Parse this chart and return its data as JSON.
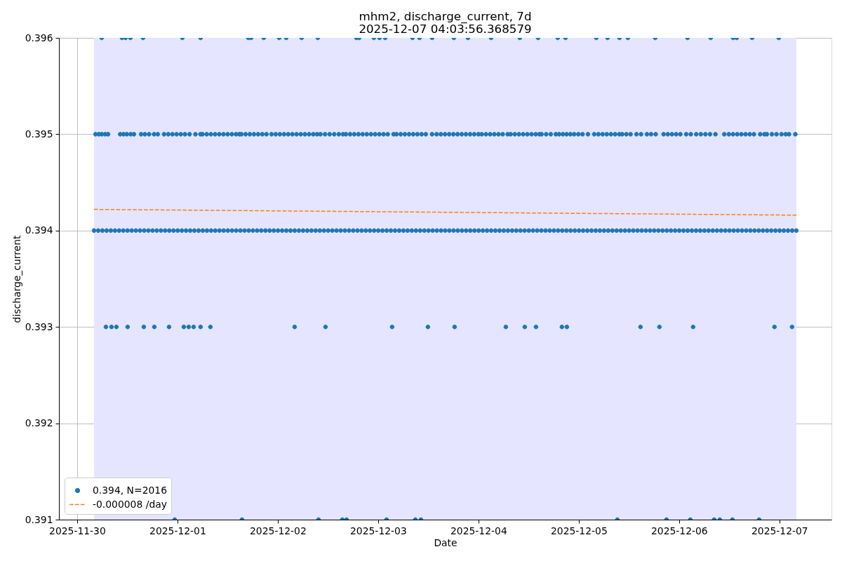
{
  "chart_data": {
    "type": "scatter",
    "title": "mhm2, discharge_current, 7d",
    "subtitle": "2025-12-07 04:03:56.368579",
    "xlabel": "Date",
    "ylabel": "discharge_current",
    "xlim": [
      "2025-11-29T19:39",
      "2025-12-07T12:27"
    ],
    "xticks": [
      "2025-11-30",
      "2025-12-01",
      "2025-12-02",
      "2025-12-03",
      "2025-12-04",
      "2025-12-05",
      "2025-12-06",
      "2025-12-07"
    ],
    "ylim": [
      0.391,
      0.396
    ],
    "yticks": [
      0.391,
      0.392,
      0.393,
      0.394,
      0.395,
      0.396
    ],
    "grid": true,
    "legend": "bottom left",
    "bands": [
      {
        "axis": "x",
        "from": "2025-11-30T04:03",
        "to": "2025-12-07T04:03",
        "color": "#e5e5ff"
      }
    ],
    "series": [
      {
        "name": "0.394, N=2016",
        "color": "#1f77b4",
        "marker": "circle",
        "x": [
          "2025-11-30T04:03",
          "2025-11-30T05:03",
          "2025-11-30T06:03",
          "2025-11-30T07:03",
          "2025-11-30T08:03",
          "2025-11-30T09:03",
          "2025-11-30T10:03",
          "2025-11-30T11:03",
          "2025-11-30T12:03",
          "2025-11-30T13:03",
          "2025-11-30T14:03",
          "2025-11-30T15:03",
          "2025-11-30T16:03",
          "2025-11-30T17:03",
          "2025-11-30T18:03",
          "2025-11-30T19:03",
          "2025-11-30T20:03",
          "2025-11-30T21:03",
          "2025-11-30T22:03",
          "2025-11-30T23:03",
          "2025-12-01T00:03",
          "2025-12-01T01:03",
          "2025-12-01T02:03",
          "2025-12-01T03:03",
          "2025-12-01T04:03",
          "2025-12-01T05:03",
          "2025-12-01T06:03",
          "2025-12-01T07:03",
          "2025-12-01T08:03",
          "2025-12-01T09:03",
          "2025-12-01T10:03",
          "2025-12-01T11:03",
          "2025-12-01T12:03",
          "2025-12-01T13:03",
          "2025-12-01T14:03",
          "2025-12-01T15:03",
          "2025-12-01T16:03",
          "2025-12-01T17:03",
          "2025-12-01T18:03",
          "2025-12-01T19:03",
          "2025-12-01T20:03",
          "2025-12-01T21:03",
          "2025-12-01T22:03",
          "2025-12-01T23:03",
          "2025-12-02T00:03",
          "2025-12-02T01:03",
          "2025-12-02T02:03",
          "2025-12-02T03:03",
          "2025-12-02T04:03",
          "2025-12-02T05:03",
          "2025-12-02T06:03",
          "2025-12-02T07:03",
          "2025-12-02T08:03",
          "2025-12-02T09:03",
          "2025-12-02T10:03",
          "2025-12-02T11:03",
          "2025-12-02T12:03",
          "2025-12-02T13:03",
          "2025-12-02T14:03",
          "2025-12-02T15:03",
          "2025-12-02T16:03",
          "2025-12-02T17:03",
          "2025-12-02T18:03",
          "2025-12-02T19:03",
          "2025-12-02T20:03",
          "2025-12-02T21:03",
          "2025-12-02T22:03",
          "2025-12-02T23:03",
          "2025-12-03T00:03",
          "2025-12-03T01:03",
          "2025-12-03T02:03",
          "2025-12-03T03:03",
          "2025-12-03T04:03",
          "2025-12-03T05:03",
          "2025-12-03T06:03",
          "2025-12-03T07:03",
          "2025-12-03T08:03",
          "2025-12-03T09:03",
          "2025-12-03T10:03",
          "2025-12-03T11:03",
          "2025-12-03T12:03",
          "2025-12-03T13:03",
          "2025-12-03T14:03",
          "2025-12-03T15:03",
          "2025-12-03T16:03",
          "2025-12-03T17:03",
          "2025-12-03T18:03",
          "2025-12-03T19:03",
          "2025-12-03T20:03",
          "2025-12-03T21:03",
          "2025-12-03T22:03",
          "2025-12-03T23:03",
          "2025-12-04T00:03",
          "2025-12-04T01:03",
          "2025-12-04T02:03",
          "2025-12-04T03:03",
          "2025-12-04T04:03",
          "2025-12-04T05:03",
          "2025-12-04T06:03",
          "2025-12-04T07:03",
          "2025-12-04T08:03",
          "2025-12-04T09:03",
          "2025-12-04T10:03",
          "2025-12-04T11:03",
          "2025-12-04T12:03",
          "2025-12-04T13:03",
          "2025-12-04T14:03",
          "2025-12-04T15:03",
          "2025-12-04T16:03",
          "2025-12-04T17:03",
          "2025-12-04T18:03",
          "2025-12-04T19:03",
          "2025-12-04T20:03",
          "2025-12-04T21:03",
          "2025-12-04T22:03",
          "2025-12-04T23:03",
          "2025-12-05T00:03",
          "2025-12-05T01:03",
          "2025-12-05T02:03",
          "2025-12-05T03:03",
          "2025-12-05T04:03",
          "2025-12-05T05:03",
          "2025-12-05T06:03",
          "2025-12-05T07:03",
          "2025-12-05T08:03",
          "2025-12-05T09:03",
          "2025-12-05T10:03",
          "2025-12-05T11:03",
          "2025-12-05T12:03",
          "2025-12-05T13:03",
          "2025-12-05T14:03",
          "2025-12-05T15:03",
          "2025-12-05T16:03",
          "2025-12-05T17:03",
          "2025-12-05T18:03",
          "2025-12-05T19:03",
          "2025-12-05T20:03",
          "2025-12-05T21:03",
          "2025-12-05T22:03",
          "2025-12-05T23:03",
          "2025-12-06T00:03",
          "2025-12-06T01:03",
          "2025-12-06T02:03",
          "2025-12-06T03:03",
          "2025-12-06T04:03",
          "2025-12-06T05:03",
          "2025-12-06T06:03",
          "2025-12-06T07:03",
          "2025-12-06T08:03",
          "2025-12-06T09:03",
          "2025-12-06T10:03",
          "2025-12-06T11:03",
          "2025-12-06T12:03",
          "2025-12-06T13:03",
          "2025-12-06T14:03",
          "2025-12-06T15:03",
          "2025-12-06T16:03",
          "2025-12-06T17:03",
          "2025-12-06T18:03",
          "2025-12-06T19:03",
          "2025-12-06T20:03",
          "2025-12-06T21:03",
          "2025-12-06T22:03",
          "2025-12-06T23:03",
          "2025-12-07T00:03",
          "2025-12-07T01:03",
          "2025-12-07T02:03",
          "2025-12-07T03:03",
          "2025-12-07T04:03",
          "2025-11-30T04:24",
          "2025-11-30T05:12",
          "2025-11-30T05:54",
          "2025-11-30T06:42",
          "2025-11-30T07:24",
          "2025-11-30T10:18",
          "2025-11-30T11:06",
          "2025-11-30T11:54",
          "2025-11-30T12:48",
          "2025-11-30T13:36",
          "2025-11-30T15:18",
          "2025-11-30T16:12",
          "2025-11-30T17:12",
          "2025-11-30T18:24",
          "2025-11-30T19:18",
          "2025-11-30T20:48",
          "2025-11-30T21:48",
          "2025-11-30T22:48",
          "2025-11-30T23:48",
          "2025-12-01T00:48",
          "2025-12-01T01:48",
          "2025-12-01T02:54",
          "2025-12-01T04:18",
          "2025-12-01T05:30",
          "2025-12-01T06:00",
          "2025-12-01T07:00",
          "2025-12-01T08:00",
          "2025-12-01T09:00",
          "2025-12-01T10:00",
          "2025-12-01T11:00",
          "2025-12-01T12:00",
          "2025-12-01T13:00",
          "2025-12-01T14:00",
          "2025-12-01T14:48",
          "2025-12-01T15:18",
          "2025-12-01T16:18",
          "2025-12-01T17:18",
          "2025-12-01T18:18",
          "2025-12-01T19:18",
          "2025-12-01T20:18",
          "2025-12-01T21:18",
          "2025-12-01T22:30",
          "2025-12-01T23:30",
          "2025-12-02T00:30",
          "2025-12-02T01:30",
          "2025-12-02T02:30",
          "2025-12-02T03:30",
          "2025-12-02T04:30",
          "2025-12-02T05:30",
          "2025-12-02T06:30",
          "2025-12-02T07:30",
          "2025-12-02T08:30",
          "2025-12-02T09:24",
          "2025-12-02T10:12",
          "2025-12-02T11:18",
          "2025-12-02T12:24",
          "2025-12-02T13:30",
          "2025-12-02T14:36",
          "2025-12-02T15:36",
          "2025-12-02T16:18",
          "2025-12-02T17:18",
          "2025-12-02T18:18",
          "2025-12-02T19:18",
          "2025-12-02T20:18",
          "2025-12-02T21:18",
          "2025-12-02T22:18",
          "2025-12-02T23:18",
          "2025-12-03T00:18",
          "2025-12-03T01:18",
          "2025-12-03T02:18",
          "2025-12-03T03:42",
          "2025-12-03T04:24",
          "2025-12-03T05:24",
          "2025-12-03T06:24",
          "2025-12-03T07:24",
          "2025-12-03T08:24",
          "2025-12-03T09:24",
          "2025-12-03T10:24",
          "2025-12-03T11:24",
          "2025-12-03T12:54",
          "2025-12-03T14:00",
          "2025-12-03T15:00",
          "2025-12-03T16:00",
          "2025-12-03T17:00",
          "2025-12-03T18:00",
          "2025-12-03T19:00",
          "2025-12-03T20:00",
          "2025-12-03T21:00",
          "2025-12-03T22:00",
          "2025-12-03T23:00",
          "2025-12-04T00:00",
          "2025-12-04T00:48",
          "2025-12-04T01:48",
          "2025-12-04T02:48",
          "2025-12-04T03:48",
          "2025-12-04T04:48",
          "2025-12-04T05:48",
          "2025-12-04T07:00",
          "2025-12-04T07:42",
          "2025-12-04T08:42",
          "2025-12-04T09:42",
          "2025-12-04T10:42",
          "2025-12-04T11:42",
          "2025-12-04T12:42",
          "2025-12-04T13:42",
          "2025-12-04T14:36",
          "2025-12-04T15:06",
          "2025-12-04T16:12",
          "2025-12-04T17:18",
          "2025-12-04T18:30",
          "2025-12-04T19:18",
          "2025-12-04T20:12",
          "2025-12-04T21:06",
          "2025-12-04T22:00",
          "2025-12-04T22:54",
          "2025-12-04T23:54",
          "2025-12-05T00:54",
          "2025-12-05T02:12",
          "2025-12-05T03:42",
          "2025-12-05T04:42",
          "2025-12-05T05:42",
          "2025-12-05T06:42",
          "2025-12-05T07:42",
          "2025-12-05T08:42",
          "2025-12-05T09:42",
          "2025-12-05T10:24",
          "2025-12-05T11:24",
          "2025-12-05T12:24",
          "2025-12-05T13:48",
          "2025-12-05T14:54",
          "2025-12-05T16:18",
          "2025-12-05T17:18",
          "2025-12-05T18:24",
          "2025-12-05T20:18",
          "2025-12-05T21:18",
          "2025-12-05T22:18",
          "2025-12-05T23:18",
          "2025-12-06T00:18",
          "2025-12-06T01:42",
          "2025-12-06T02:48",
          "2025-12-06T04:06",
          "2025-12-06T05:12",
          "2025-12-06T06:18",
          "2025-12-06T07:24",
          "2025-12-06T08:42",
          "2025-12-06T10:48",
          "2025-12-06T11:54",
          "2025-12-06T12:54",
          "2025-12-06T13:54",
          "2025-12-06T14:54",
          "2025-12-06T15:54",
          "2025-12-06T16:54",
          "2025-12-06T17:54",
          "2025-12-06T19:24",
          "2025-12-06T20:24",
          "2025-12-06T21:00",
          "2025-12-06T22:12",
          "2025-12-06T23:18",
          "2025-12-07T00:30",
          "2025-12-07T01:30",
          "2025-12-07T02:18",
          "2025-12-07T03:48",
          "2025-11-30T05:52",
          "2025-11-30T10:44",
          "2025-11-30T11:35",
          "2025-11-30T12:45",
          "2025-11-30T15:46",
          "2025-12-01T01:10",
          "2025-12-01T05:32",
          "2025-12-01T16:57",
          "2025-12-01T17:37",
          "2025-12-01T20:38",
          "2025-12-02T00:20",
          "2025-12-02T02:01",
          "2025-12-02T05:42",
          "2025-12-02T09:34",
          "2025-12-02T18:48",
          "2025-12-02T19:28",
          "2025-12-02T22:59",
          "2025-12-03T00:20",
          "2025-12-03T01:41",
          "2025-12-03T08:13",
          "2025-12-03T09:54",
          "2025-12-03T12:55",
          "2025-12-03T18:07",
          "2025-12-03T21:29",
          "2025-12-04T03:01",
          "2025-12-04T09:54",
          "2025-12-04T14:16",
          "2025-12-04T18:58",
          "2025-12-04T20:49",
          "2025-12-05T04:11",
          "2025-12-05T06:53",
          "2025-12-05T09:44",
          "2025-12-05T11:45",
          "2025-12-05T18:17",
          "2025-12-06T02:01",
          "2025-12-06T07:33",
          "2025-12-06T12:55",
          "2025-12-06T13:46",
          "2025-12-06T17:27",
          "2025-12-06T23:50",
          "2025-11-30T06:53",
          "2025-11-30T08:13",
          "2025-11-30T09:24",
          "2025-11-30T12:05",
          "2025-11-30T15:57",
          "2025-11-30T18:28",
          "2025-11-30T21:59",
          "2025-12-01T01:31",
          "2025-12-01T02:41",
          "2025-12-01T03:52",
          "2025-12-01T05:32",
          "2025-12-01T07:53",
          "2025-12-02T04:02",
          "2025-12-02T11:25",
          "2025-12-03T03:21",
          "2025-12-03T11:55",
          "2025-12-03T18:18",
          "2025-12-04T06:33",
          "2025-12-04T11:05",
          "2025-12-04T13:46",
          "2025-12-04T19:58",
          "2025-12-04T21:09",
          "2025-12-05T14:46",
          "2025-12-05T19:18",
          "2025-12-06T03:21",
          "2025-12-06T22:49",
          "2025-12-07T03:01",
          "2025-11-30T23:20",
          "2025-12-01T15:26",
          "2025-12-02T09:44",
          "2025-12-02T15:26",
          "2025-12-02T16:27",
          "2025-12-03T02:01",
          "2025-12-03T08:54",
          "2025-12-03T10:14",
          "2025-12-05T09:14",
          "2025-12-05T20:59",
          "2025-12-06T02:41",
          "2025-12-06T08:23",
          "2025-12-06T09:44",
          "2025-12-06T12:45",
          "2025-12-06T19:08"
        ],
        "values": [
          0.394,
          0.394,
          0.394,
          0.394,
          0.394,
          0.394,
          0.394,
          0.394,
          0.394,
          0.394,
          0.394,
          0.394,
          0.394,
          0.394,
          0.394,
          0.394,
          0.394,
          0.394,
          0.394,
          0.394,
          0.394,
          0.394,
          0.394,
          0.394,
          0.394,
          0.394,
          0.394,
          0.394,
          0.394,
          0.394,
          0.394,
          0.394,
          0.394,
          0.394,
          0.394,
          0.394,
          0.394,
          0.394,
          0.394,
          0.394,
          0.394,
          0.394,
          0.394,
          0.394,
          0.394,
          0.394,
          0.394,
          0.394,
          0.394,
          0.394,
          0.394,
          0.394,
          0.394,
          0.394,
          0.394,
          0.394,
          0.394,
          0.394,
          0.394,
          0.394,
          0.394,
          0.394,
          0.394,
          0.394,
          0.394,
          0.394,
          0.394,
          0.394,
          0.394,
          0.394,
          0.394,
          0.394,
          0.394,
          0.394,
          0.394,
          0.394,
          0.394,
          0.394,
          0.394,
          0.394,
          0.394,
          0.394,
          0.394,
          0.394,
          0.394,
          0.394,
          0.394,
          0.394,
          0.394,
          0.394,
          0.394,
          0.394,
          0.394,
          0.394,
          0.394,
          0.394,
          0.394,
          0.394,
          0.394,
          0.394,
          0.394,
          0.394,
          0.394,
          0.394,
          0.394,
          0.394,
          0.394,
          0.394,
          0.394,
          0.394,
          0.394,
          0.394,
          0.394,
          0.394,
          0.394,
          0.394,
          0.394,
          0.394,
          0.394,
          0.394,
          0.394,
          0.394,
          0.394,
          0.394,
          0.394,
          0.394,
          0.394,
          0.394,
          0.394,
          0.394,
          0.394,
          0.394,
          0.394,
          0.394,
          0.394,
          0.394,
          0.394,
          0.394,
          0.394,
          0.394,
          0.394,
          0.394,
          0.394,
          0.394,
          0.394,
          0.394,
          0.394,
          0.394,
          0.394,
          0.394,
          0.394,
          0.394,
          0.394,
          0.394,
          0.394,
          0.394,
          0.394,
          0.394,
          0.394,
          0.394,
          0.394,
          0.394,
          0.394,
          0.394,
          0.394,
          0.394,
          0.394,
          0.394,
          0.394,
          0.395,
          0.395,
          0.395,
          0.395,
          0.395,
          0.395,
          0.395,
          0.395,
          0.395,
          0.395,
          0.395,
          0.395,
          0.395,
          0.395,
          0.395,
          0.395,
          0.395,
          0.395,
          0.395,
          0.395,
          0.395,
          0.395,
          0.395,
          0.395,
          0.395,
          0.395,
          0.395,
          0.395,
          0.395,
          0.395,
          0.395,
          0.395,
          0.395,
          0.395,
          0.395,
          0.395,
          0.395,
          0.395,
          0.395,
          0.395,
          0.395,
          0.395,
          0.395,
          0.395,
          0.395,
          0.395,
          0.395,
          0.395,
          0.395,
          0.395,
          0.395,
          0.395,
          0.395,
          0.395,
          0.395,
          0.395,
          0.395,
          0.395,
          0.395,
          0.395,
          0.395,
          0.395,
          0.395,
          0.395,
          0.395,
          0.395,
          0.395,
          0.395,
          0.395,
          0.395,
          0.395,
          0.395,
          0.395,
          0.395,
          0.395,
          0.395,
          0.395,
          0.395,
          0.395,
          0.395,
          0.395,
          0.395,
          0.395,
          0.395,
          0.395,
          0.395,
          0.395,
          0.395,
          0.395,
          0.395,
          0.395,
          0.395,
          0.395,
          0.395,
          0.395,
          0.395,
          0.395,
          0.395,
          0.395,
          0.395,
          0.395,
          0.395,
          0.395,
          0.395,
          0.395,
          0.395,
          0.395,
          0.395,
          0.395,
          0.395,
          0.395,
          0.395,
          0.395,
          0.395,
          0.395,
          0.395,
          0.395,
          0.395,
          0.395,
          0.395,
          0.395,
          0.395,
          0.395,
          0.395,
          0.395,
          0.395,
          0.395,
          0.395,
          0.395,
          0.395,
          0.395,
          0.395,
          0.395,
          0.395,
          0.395,
          0.395,
          0.395,
          0.395,
          0.395,
          0.395,
          0.395,
          0.395,
          0.395,
          0.395,
          0.395,
          0.395,
          0.395,
          0.395,
          0.395,
          0.395,
          0.395,
          0.395,
          0.395,
          0.395,
          0.395,
          0.395,
          0.395,
          0.395,
          0.395,
          0.395,
          0.395,
          0.395,
          0.396,
          0.396,
          0.396,
          0.396,
          0.396,
          0.396,
          0.396,
          0.396,
          0.396,
          0.396,
          0.396,
          0.396,
          0.396,
          0.396,
          0.396,
          0.396,
          0.396,
          0.396,
          0.396,
          0.396,
          0.396,
          0.396,
          0.396,
          0.396,
          0.396,
          0.396,
          0.396,
          0.396,
          0.396,
          0.396,
          0.396,
          0.396,
          0.396,
          0.396,
          0.396,
          0.396,
          0.396,
          0.396,
          0.396,
          0.396,
          0.393,
          0.393,
          0.393,
          0.393,
          0.393,
          0.393,
          0.393,
          0.393,
          0.393,
          0.393,
          0.393,
          0.393,
          0.393,
          0.393,
          0.393,
          0.393,
          0.393,
          0.393,
          0.393,
          0.393,
          0.393,
          0.393,
          0.393,
          0.393,
          0.393,
          0.393,
          0.393,
          0.391,
          0.391,
          0.391,
          0.391,
          0.391,
          0.391,
          0.391,
          0.391,
          0.391,
          0.391,
          0.391,
          0.391,
          0.391,
          0.391,
          0.391
        ]
      },
      {
        "name": "-0.000008 /day",
        "type": "line",
        "color": "#ff7f0e",
        "line_style": "dashed",
        "x": [
          "2025-11-30T04:03",
          "2025-12-07T04:03"
        ],
        "values": [
          0.39422,
          0.39416
        ]
      }
    ]
  }
}
